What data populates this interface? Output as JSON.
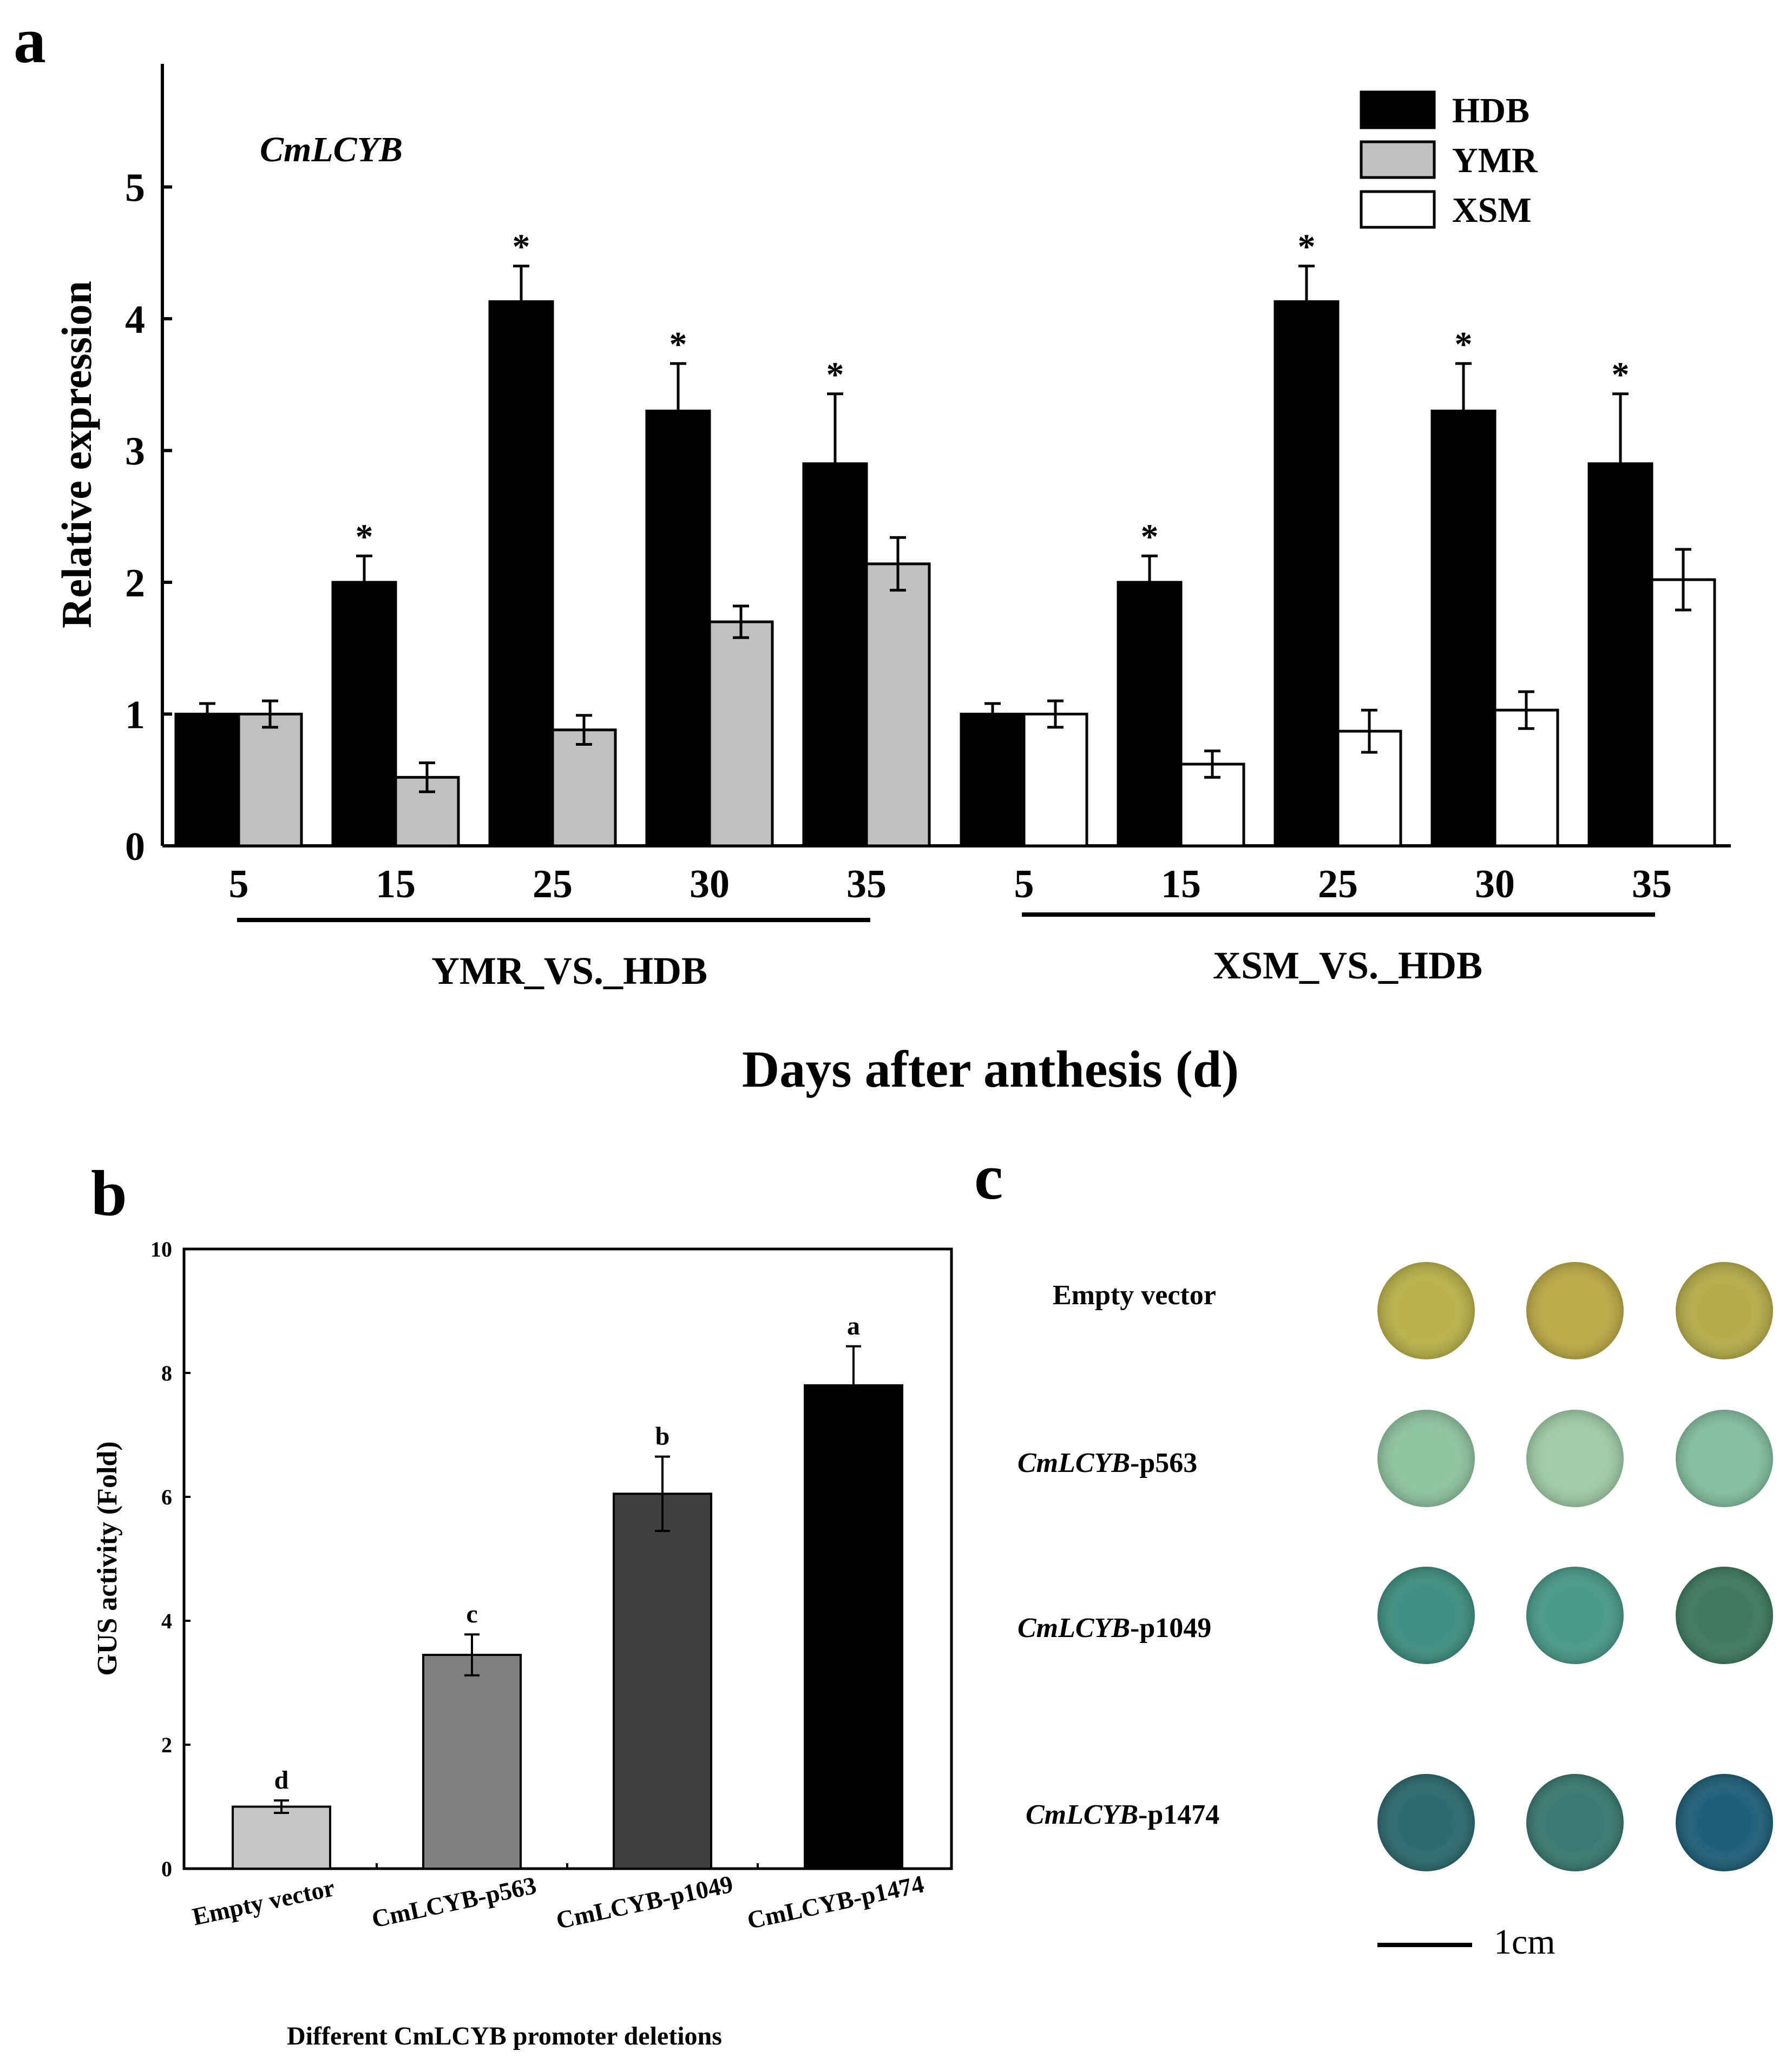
{
  "panels": {
    "a": {
      "label": "a"
    },
    "b": {
      "label": "b"
    },
    "c": {
      "label": "c"
    }
  },
  "colors": {
    "hdb": "#000000",
    "ymr": "#c0c0c0",
    "xsm": "#ffffff",
    "b_bars": [
      "#c6c6c6",
      "#7f7f7f",
      "#3f3f3f",
      "#000000"
    ]
  },
  "chart_data": [
    {
      "panel": "a",
      "type": "bar",
      "gene_label": "CmLCYB",
      "ylabel": "Relative expression",
      "xlabel": "Days after anthesis (d)",
      "ylim": [
        0,
        6
      ],
      "yticks": [
        0,
        1,
        2,
        3,
        4,
        5
      ],
      "legend": [
        {
          "name": "HDB",
          "color_key": "hdb"
        },
        {
          "name": "YMR",
          "color_key": "ymr"
        },
        {
          "name": "XSM",
          "color_key": "xsm"
        }
      ],
      "legend_position": "top-right",
      "groups": [
        {
          "name": "YMR_VS._HDB",
          "categories": [
            "5",
            "15",
            "25",
            "30",
            "35"
          ],
          "series": [
            {
              "name": "HDB",
              "values": [
                1.0,
                2.0,
                4.13,
                3.3,
                2.9
              ],
              "errors": [
                0.08,
                0.2,
                0.27,
                0.36,
                0.53
              ]
            },
            {
              "name": "YMR",
              "values": [
                1.0,
                0.52,
                0.88,
                1.7,
                2.14
              ],
              "errors": [
                0.1,
                0.11,
                0.11,
                0.12,
                0.2
              ]
            }
          ],
          "significance": [
            "",
            "*",
            "*",
            "*",
            "*"
          ]
        },
        {
          "name": "XSM_VS._HDB",
          "categories": [
            "5",
            "15",
            "25",
            "30",
            "35"
          ],
          "series": [
            {
              "name": "HDB",
              "values": [
                1.0,
                2.0,
                4.13,
                3.3,
                2.9
              ],
              "errors": [
                0.08,
                0.2,
                0.27,
                0.36,
                0.53
              ]
            },
            {
              "name": "XSM",
              "values": [
                1.0,
                0.62,
                0.87,
                1.03,
                2.02
              ],
              "errors": [
                0.1,
                0.1,
                0.16,
                0.14,
                0.23
              ]
            }
          ],
          "significance": [
            "",
            "*",
            "*",
            "*",
            "*"
          ]
        }
      ]
    },
    {
      "panel": "b",
      "type": "bar",
      "ylabel": "GUS activity (Fold)",
      "xlabel": "Different CmLCYB promoter deletions",
      "ylim": [
        0,
        10
      ],
      "yticks": [
        0,
        2,
        4,
        6,
        8,
        10
      ],
      "categories": [
        "Empty vector",
        "CmLCYB-p563",
        "CmLCYB-p1049",
        "CmLCYB-p1474"
      ],
      "values": [
        1.0,
        3.45,
        6.05,
        7.8
      ],
      "errors": [
        0.1,
        0.33,
        0.6,
        0.63
      ],
      "letters": [
        "d",
        "c",
        "b",
        "a"
      ]
    }
  ],
  "panel_c": {
    "rows": [
      {
        "italic": "",
        "plain": "Empty vector",
        "disc_colors": [
          "#b9b24a",
          "#bcab46",
          "#b6ad4a"
        ]
      },
      {
        "italic": "CmLCYB",
        "plain": "-p563",
        "disc_colors": [
          "#8fc49e",
          "#a0cca7",
          "#84bfa0"
        ]
      },
      {
        "italic": "CmLCYB",
        "plain": "-p1049",
        "disc_colors": [
          "#3f8f82",
          "#4a9a89",
          "#3f7a60"
        ]
      },
      {
        "italic": "CmLCYB",
        "plain": "-p1474",
        "disc_colors": [
          "#2d6b6f",
          "#3a7a72",
          "#1f6079"
        ]
      }
    ],
    "scale_bar_label": "1cm"
  }
}
